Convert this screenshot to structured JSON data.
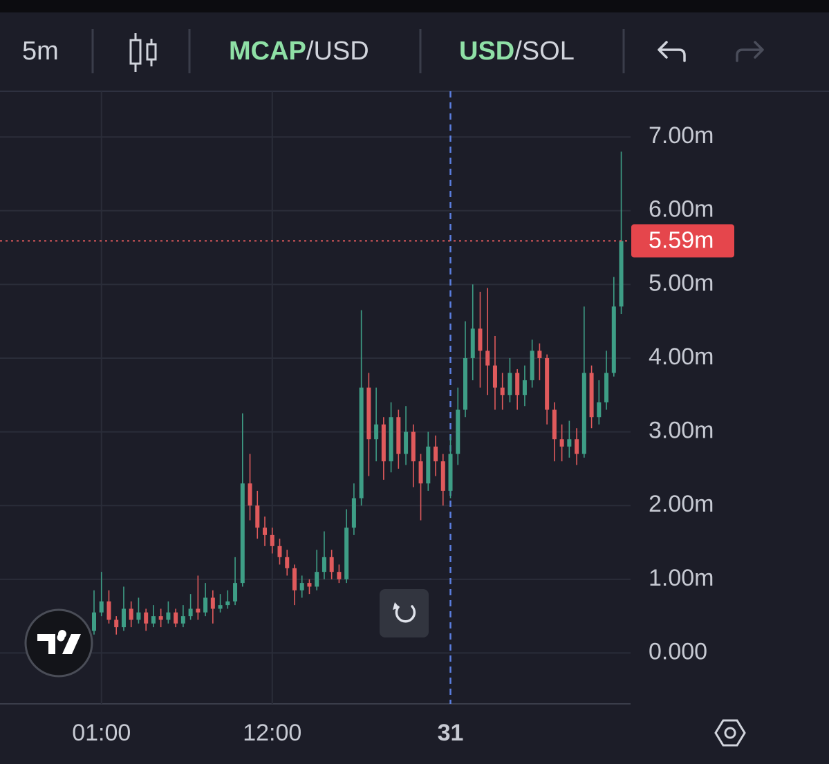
{
  "toolbar": {
    "interval": "5m",
    "pair_one": {
      "accent": "MCAP",
      "rest": "/USD"
    },
    "pair_two": {
      "accent": "USD",
      "rest": "/SOL"
    }
  },
  "chart_data": {
    "type": "candlestick",
    "categories": [
      null,
      "01:00",
      null,
      null,
      null,
      null,
      null,
      null,
      null,
      null,
      null,
      null,
      null,
      null,
      null,
      null,
      null,
      null,
      null,
      null,
      null,
      null,
      null,
      null,
      "12:00",
      null,
      null,
      null,
      null,
      null,
      null,
      null,
      null,
      null,
      null,
      null,
      null,
      null,
      null,
      null,
      null,
      null,
      null,
      null,
      null,
      null,
      null,
      null,
      "31",
      null,
      null,
      null,
      null,
      null,
      null,
      null,
      null,
      null,
      null,
      null,
      null,
      null,
      null,
      null,
      null,
      null,
      null,
      null,
      null,
      null,
      null,
      null
    ],
    "open": [
      0.3,
      0.55,
      0.7,
      0.45,
      0.35,
      0.6,
      0.45,
      0.55,
      0.4,
      0.5,
      0.45,
      0.55,
      0.4,
      0.5,
      0.6,
      0.55,
      0.75,
      0.6,
      0.65,
      0.7,
      0.95,
      2.3,
      2.0,
      1.7,
      1.6,
      1.45,
      1.3,
      1.15,
      0.85,
      0.95,
      0.9,
      1.1,
      1.3,
      1.1,
      1.0,
      1.7,
      2.1,
      3.6,
      2.9,
      3.1,
      2.6,
      3.2,
      2.7,
      3.0,
      2.6,
      2.3,
      2.8,
      2.6,
      2.2,
      2.7,
      3.3,
      4.0,
      4.4,
      4.1,
      3.9,
      3.6,
      3.5,
      3.8,
      3.5,
      3.7,
      4.1,
      4.0,
      3.3,
      2.9,
      2.8,
      2.9,
      2.7,
      3.8,
      3.2,
      3.4,
      3.8,
      4.7
    ],
    "high": [
      0.85,
      1.1,
      0.85,
      0.5,
      0.9,
      0.7,
      0.75,
      0.6,
      0.65,
      0.6,
      0.7,
      0.6,
      0.65,
      0.8,
      1.05,
      0.95,
      0.85,
      0.8,
      0.85,
      1.3,
      3.25,
      2.7,
      2.2,
      1.85,
      1.7,
      1.55,
      1.4,
      1.2,
      1.05,
      1.0,
      1.4,
      1.65,
      1.4,
      1.2,
      1.95,
      2.3,
      4.65,
      3.8,
      3.6,
      3.2,
      3.4,
      3.3,
      3.35,
      3.1,
      2.7,
      3.0,
      2.95,
      2.7,
      2.95,
      3.6,
      4.5,
      5.0,
      4.9,
      4.95,
      4.3,
      3.8,
      4.0,
      3.85,
      3.9,
      4.25,
      4.2,
      4.05,
      3.4,
      3.1,
      3.15,
      3.05,
      4.7,
      3.9,
      3.7,
      4.1,
      5.1,
      6.8
    ],
    "low": [
      0.25,
      0.5,
      0.4,
      0.25,
      0.3,
      0.35,
      0.4,
      0.3,
      0.35,
      0.35,
      0.4,
      0.35,
      0.35,
      0.45,
      0.45,
      0.5,
      0.4,
      0.55,
      0.6,
      0.65,
      0.9,
      1.8,
      1.55,
      1.45,
      1.35,
      1.2,
      1.05,
      0.65,
      0.75,
      0.8,
      0.85,
      1.0,
      1.0,
      0.95,
      0.95,
      1.6,
      2.0,
      2.4,
      2.6,
      2.35,
      2.45,
      2.5,
      2.55,
      2.25,
      1.8,
      2.2,
      2.4,
      2.0,
      2.1,
      2.55,
      3.2,
      3.7,
      3.6,
      3.5,
      3.3,
      3.3,
      3.4,
      3.3,
      3.35,
      3.6,
      3.7,
      3.1,
      2.6,
      2.6,
      2.65,
      2.55,
      2.65,
      3.05,
      3.1,
      3.3,
      3.75,
      4.6
    ],
    "close": [
      0.55,
      0.7,
      0.45,
      0.35,
      0.6,
      0.45,
      0.55,
      0.4,
      0.5,
      0.45,
      0.55,
      0.4,
      0.5,
      0.6,
      0.55,
      0.75,
      0.6,
      0.65,
      0.7,
      0.95,
      2.3,
      2.0,
      1.7,
      1.6,
      1.45,
      1.3,
      1.15,
      0.85,
      0.95,
      0.9,
      1.1,
      1.3,
      1.1,
      1.0,
      1.7,
      2.1,
      3.6,
      2.9,
      3.1,
      2.6,
      3.2,
      2.7,
      3.0,
      2.6,
      2.3,
      2.8,
      2.6,
      2.2,
      2.7,
      3.3,
      4.0,
      4.4,
      4.1,
      3.9,
      3.6,
      3.5,
      3.8,
      3.5,
      3.7,
      4.1,
      4.0,
      3.3,
      2.9,
      2.8,
      2.9,
      2.7,
      3.8,
      3.2,
      3.4,
      3.8,
      4.7,
      5.59
    ],
    "up_color": "#3e9e86",
    "down_color": "#e05a5c",
    "ylim": [
      -0.69,
      7.62
    ],
    "yticks": [
      {
        "value": 0,
        "label": "0.000"
      },
      {
        "value": 1,
        "label": "1.00m"
      },
      {
        "value": 2,
        "label": "2.00m"
      },
      {
        "value": 3,
        "label": "3.00m"
      },
      {
        "value": 4,
        "label": "4.00m"
      },
      {
        "value": 5,
        "label": "5.00m"
      },
      {
        "value": 6,
        "label": "6.00m"
      },
      {
        "value": 7,
        "label": "7.00m"
      }
    ],
    "last_price": {
      "value": 5.59,
      "label": "5.59m"
    },
    "grid": true
  }
}
